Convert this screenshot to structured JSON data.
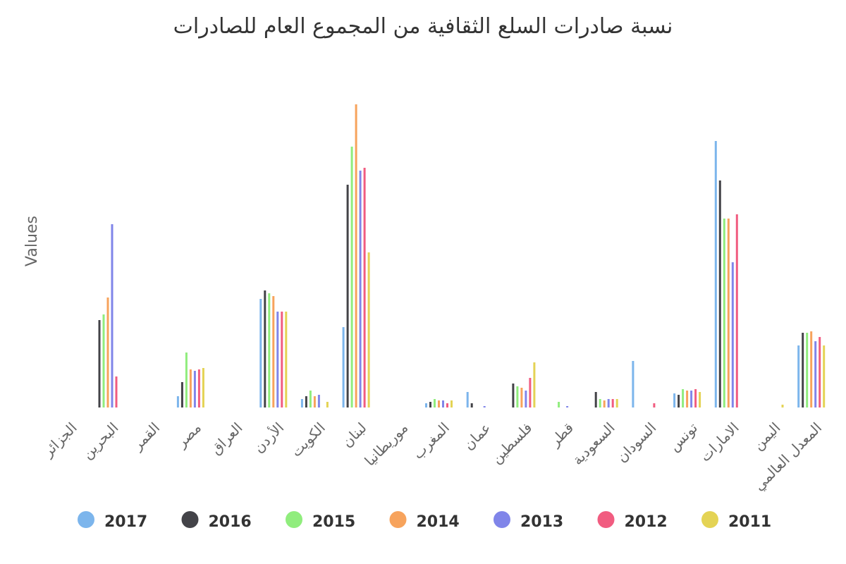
{
  "chart_data": {
    "type": "bar",
    "title": "نسبة صادرات السلع الثقافية من المجموع العام للصادرات",
    "xlabel": "",
    "ylabel": "Values",
    "ylim": [
      0,
      0.43
    ],
    "grid": false,
    "legend_position": "bottom",
    "categories": [
      "الجزائر",
      "البحرين",
      "القمر",
      "مصر",
      "العراق",
      "الأردن",
      "الكويت",
      "لبنان",
      "موريطانيا",
      "المغرب",
      "عمان",
      "فلسطين",
      "قطر",
      "السعودية",
      "السودان",
      "تونس",
      "الامارات",
      "اليمن",
      "المعدل العالمي"
    ],
    "series": [
      {
        "name": "2017",
        "color": "#7cb5ec",
        "values": [
          null,
          null,
          null,
          0.016,
          null,
          0.154,
          0.012,
          0.114,
          null,
          0.006,
          0.022,
          null,
          null,
          null,
          0.066,
          0.02,
          0.378,
          null,
          0.088
        ]
      },
      {
        "name": "2016",
        "color": "#434348",
        "values": [
          null,
          0.124,
          null,
          0.036,
          null,
          0.166,
          0.016,
          0.316,
          null,
          0.008,
          0.006,
          0.034,
          null,
          0.022,
          null,
          0.018,
          0.322,
          null,
          0.106
        ]
      },
      {
        "name": "2015",
        "color": "#90ed7d",
        "values": [
          null,
          0.132,
          null,
          0.078,
          null,
          0.162,
          0.024,
          0.37,
          null,
          0.012,
          null,
          0.03,
          0.008,
          0.012,
          null,
          0.026,
          0.268,
          null,
          0.106
        ]
      },
      {
        "name": "2014",
        "color": "#f7a35c",
        "values": [
          null,
          0.156,
          null,
          0.054,
          null,
          0.158,
          0.016,
          0.43,
          null,
          0.01,
          null,
          0.028,
          null,
          0.01,
          null,
          0.024,
          0.268,
          null,
          0.108
        ]
      },
      {
        "name": "2013",
        "color": "#8085e9",
        "values": [
          null,
          0.26,
          null,
          0.052,
          null,
          0.136,
          0.018,
          0.336,
          null,
          0.01,
          0.002,
          0.024,
          0.002,
          0.012,
          null,
          0.024,
          0.206,
          null,
          0.094
        ]
      },
      {
        "name": "2012",
        "color": "#f15c80",
        "values": [
          null,
          0.044,
          null,
          0.054,
          null,
          0.136,
          null,
          0.34,
          null,
          0.006,
          null,
          0.042,
          null,
          0.012,
          0.006,
          0.026,
          0.274,
          null,
          0.1
        ]
      },
      {
        "name": "2011",
        "color": "#e4d354",
        "values": [
          null,
          null,
          null,
          0.056,
          null,
          0.136,
          0.008,
          0.22,
          null,
          0.01,
          null,
          0.064,
          null,
          0.012,
          null,
          0.022,
          null,
          0.004,
          0.088
        ]
      }
    ]
  }
}
